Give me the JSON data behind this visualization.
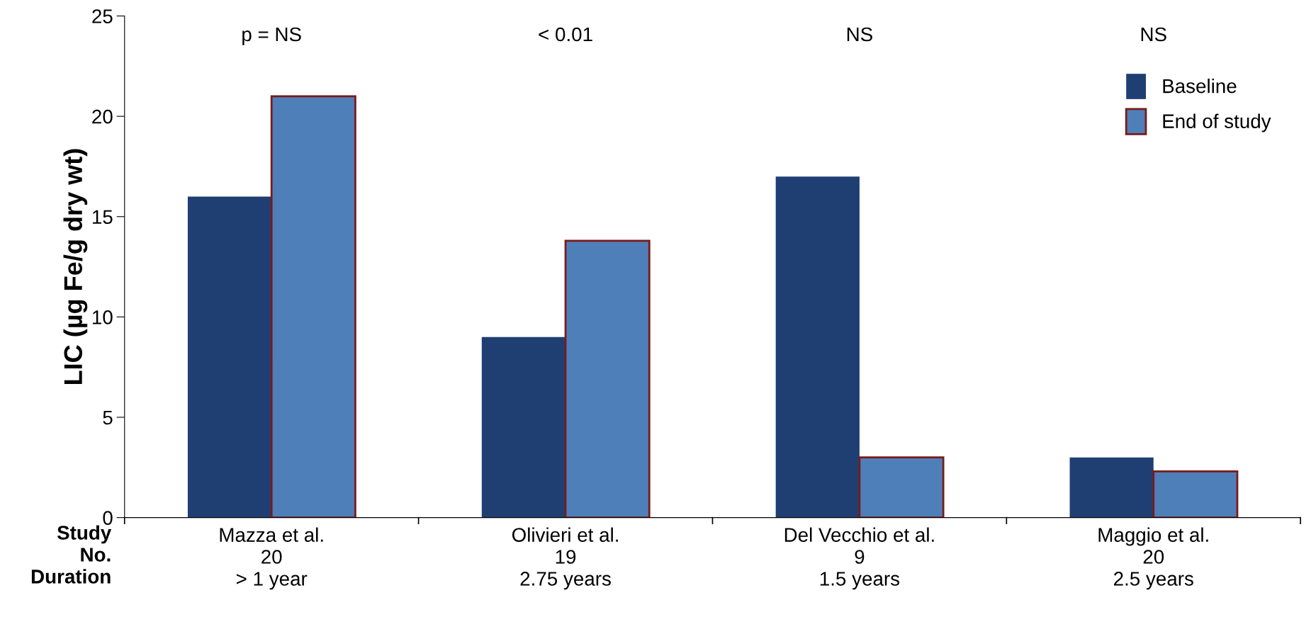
{
  "chart_data": {
    "type": "bar",
    "ylabel": "LIC (µg Fe/g dry wt)",
    "categories": [
      "Mazza et al.\n20\n> 1 year",
      "Olivieri et al.\n19\n2.75 years",
      "Del Vecchio et al.\n9\n1.5 years",
      "Maggio et al.\n20\n2.5 years"
    ],
    "series": [
      {
        "name": "Baseline",
        "color": "#1f3f73",
        "values": [
          16.0,
          9.0,
          17.0,
          3.0
        ]
      },
      {
        "name": "End of study",
        "color": "#4f7fb8",
        "values": [
          21.0,
          13.8,
          3.0,
          2.3
        ]
      }
    ],
    "ylim": [
      0,
      25
    ],
    "yticks": [
      0,
      5,
      10,
      15,
      20,
      25
    ],
    "grid": false,
    "legend": "top right",
    "annotations": [
      "p = NS",
      "< 0.01",
      "NS",
      "NS",
      "Study\nNo.\nDuration"
    ]
  }
}
